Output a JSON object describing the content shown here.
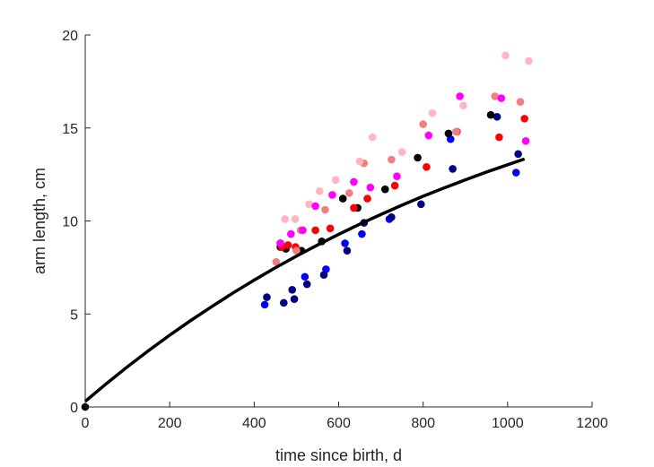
{
  "chart_data": {
    "type": "scatter",
    "xlabel": "time since birth, d",
    "ylabel": "arm length, cm",
    "xlim": [
      0,
      1200
    ],
    "ylim": [
      0,
      20
    ],
    "xticks": [
      0,
      200,
      400,
      600,
      800,
      1000,
      1200
    ],
    "yticks": [
      0,
      5,
      10,
      15,
      20
    ],
    "xtick_labels": [
      "0",
      "200",
      "400",
      "600",
      "800",
      "1000",
      "1200"
    ],
    "ytick_labels": [
      "0",
      "5",
      "10",
      "15",
      "20"
    ],
    "grid": false,
    "colors": {
      "axis": "#262626",
      "fit": "#000000"
    },
    "series": [
      {
        "color": "#0000ff",
        "points": [
          [
            425,
            5.5
          ],
          [
            520,
            7.0
          ],
          [
            570,
            7.4
          ],
          [
            615,
            8.8
          ],
          [
            655,
            9.3
          ],
          [
            720,
            10.1
          ],
          [
            865,
            14.4
          ],
          [
            1020,
            12.6
          ]
        ]
      },
      {
        "color": "#000080",
        "points": [
          [
            430,
            5.9
          ],
          [
            470,
            5.6
          ],
          [
            490,
            6.3
          ],
          [
            495,
            5.8
          ],
          [
            525,
            6.6
          ],
          [
            565,
            7.1
          ],
          [
            620,
            8.4
          ],
          [
            660,
            9.9
          ],
          [
            725,
            10.2
          ],
          [
            795,
            10.9
          ],
          [
            870,
            12.8
          ],
          [
            975,
            15.6
          ],
          [
            1025,
            13.6
          ]
        ]
      },
      {
        "color": "#000000",
        "points": [
          [
            0,
            0.0
          ],
          [
            462,
            8.6
          ],
          [
            462,
            8.8
          ],
          [
            475,
            8.5
          ],
          [
            512,
            8.4
          ],
          [
            560,
            8.9
          ],
          [
            610,
            11.2
          ],
          [
            645,
            10.7
          ],
          [
            710,
            11.7
          ],
          [
            787,
            13.4
          ],
          [
            860,
            14.7
          ],
          [
            960,
            15.7
          ]
        ]
      },
      {
        "color": "#ff0000",
        "points": [
          [
            465,
            8.6
          ],
          [
            480,
            8.7
          ],
          [
            498,
            8.6
          ],
          [
            545,
            9.5
          ],
          [
            580,
            9.6
          ],
          [
            636,
            10.7
          ],
          [
            668,
            11.2
          ],
          [
            733,
            11.9
          ],
          [
            808,
            12.9
          ],
          [
            880,
            14.8
          ],
          [
            980,
            14.5
          ],
          [
            1040,
            15.5
          ]
        ]
      },
      {
        "color": "#f08080",
        "points": [
          [
            452,
            7.8
          ],
          [
            500,
            8.4
          ],
          [
            510,
            9.5
          ],
          [
            568,
            10.6
          ],
          [
            625,
            11.5
          ],
          [
            660,
            13.1
          ],
          [
            725,
            13.3
          ],
          [
            800,
            15.2
          ],
          [
            878,
            14.8
          ],
          [
            970,
            16.7
          ],
          [
            1030,
            16.4
          ]
        ]
      },
      {
        "color": "#ffb6c1",
        "points": [
          [
            473,
            10.1
          ],
          [
            497,
            10.1
          ],
          [
            530,
            10.9
          ],
          [
            555,
            11.6
          ],
          [
            593,
            12.2
          ],
          [
            650,
            13.2
          ],
          [
            680,
            14.5
          ],
          [
            750,
            13.7
          ],
          [
            822,
            15.8
          ],
          [
            895,
            16.2
          ],
          [
            995,
            18.9
          ],
          [
            1050,
            18.6
          ]
        ]
      },
      {
        "color": "#ff00ff",
        "points": [
          [
            462,
            8.8
          ],
          [
            487,
            9.3
          ],
          [
            515,
            9.5
          ],
          [
            545,
            10.8
          ],
          [
            585,
            11.4
          ],
          [
            636,
            12.1
          ],
          [
            675,
            11.8
          ],
          [
            738,
            12.4
          ],
          [
            813,
            14.6
          ],
          [
            887,
            16.7
          ],
          [
            985,
            16.6
          ],
          [
            1043,
            14.3
          ]
        ]
      }
    ],
    "fit_line": {
      "x": [
        0,
        50,
        100,
        150,
        200,
        250,
        300,
        350,
        400,
        450,
        500,
        550,
        600,
        650,
        700,
        750,
        800,
        850,
        900,
        950,
        1000,
        1040
      ],
      "y": [
        0.3,
        1.25,
        2.16,
        3.03,
        3.86,
        4.65,
        5.4,
        6.13,
        6.82,
        7.48,
        8.11,
        8.71,
        9.28,
        9.83,
        10.35,
        10.85,
        11.33,
        11.78,
        12.21,
        12.63,
        13.02,
        13.33
      ]
    }
  }
}
